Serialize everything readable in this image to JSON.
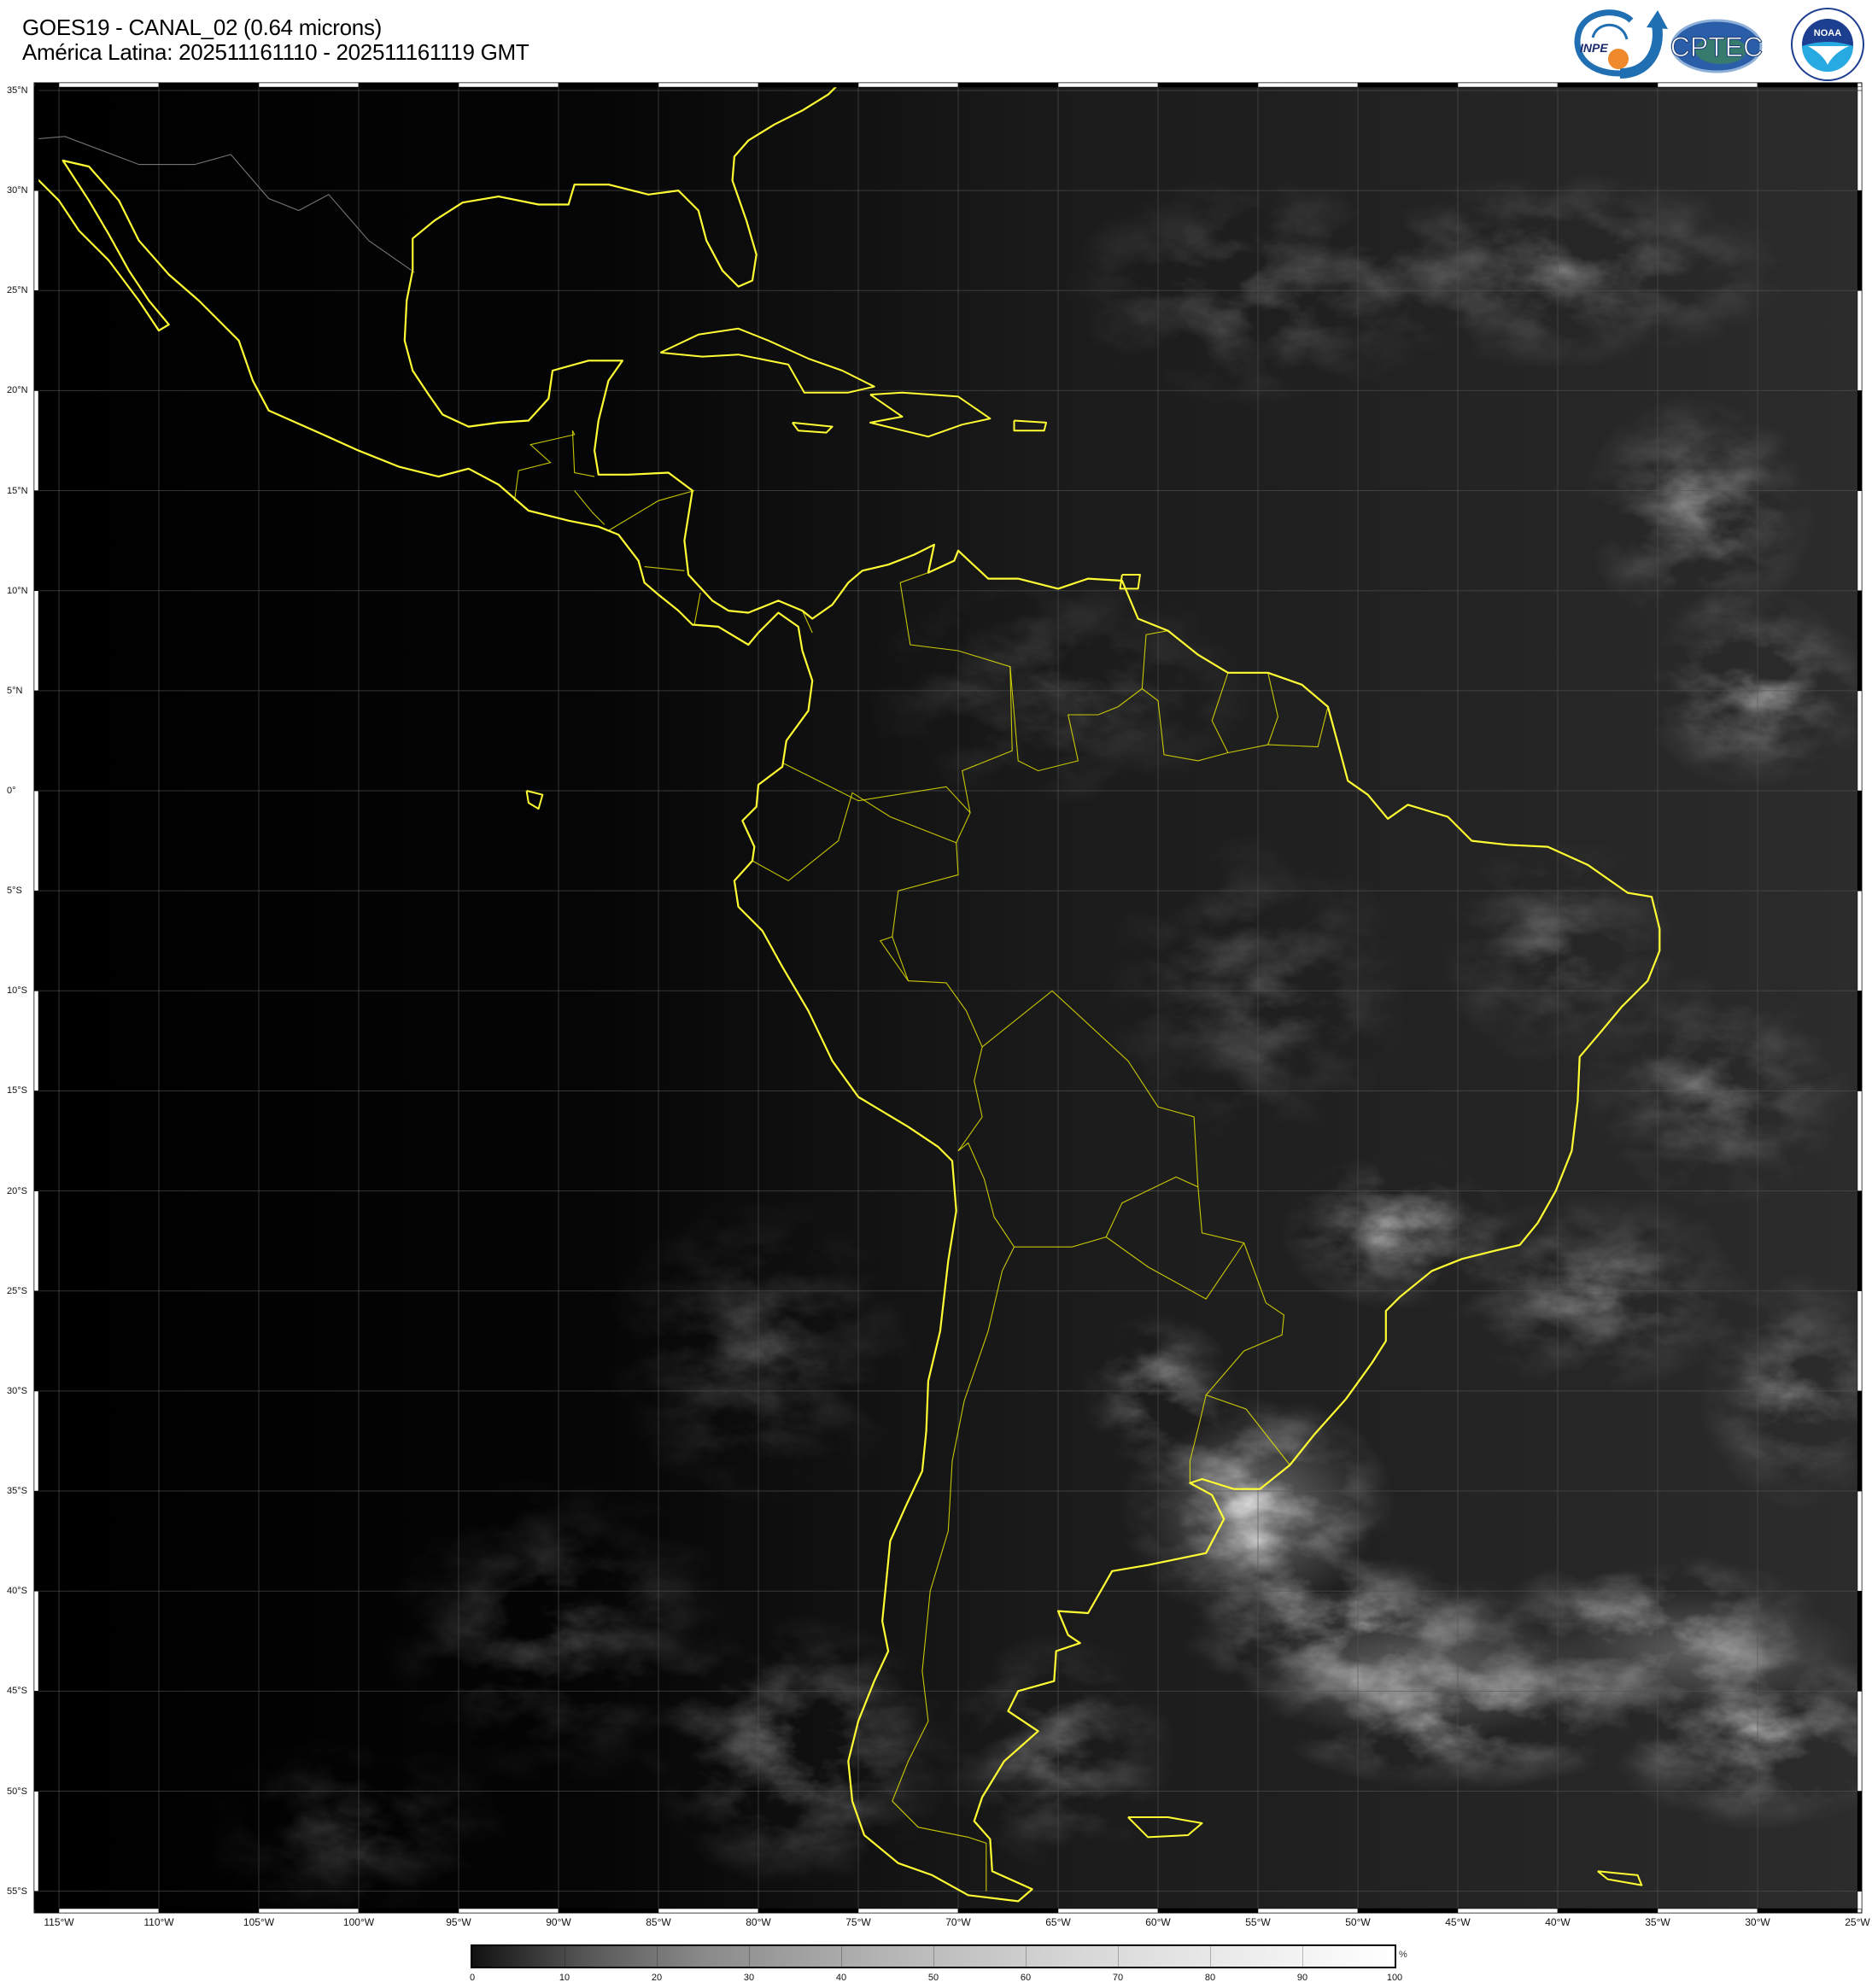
{
  "header": {
    "title": "GOES19 - CANAL_02 (0.64 microns)",
    "subtitle": "América Latina: 202511161110 - 202511161119 GMT"
  },
  "logos": {
    "inpe": "INPE",
    "cptec": "CPTEC",
    "noaa": "NOAA",
    "noaa_ring": "NATIONAL OCEANIC AND ATMOSPHERIC ADMINISTRATION · U.S. DEPARTMENT OF COMMERCE"
  },
  "map": {
    "lat_labels": [
      {
        "lat": 35,
        "text": "35°N"
      },
      {
        "lat": 30,
        "text": "30°N"
      },
      {
        "lat": 25,
        "text": "25°N"
      },
      {
        "lat": 20,
        "text": "20°N"
      },
      {
        "lat": 15,
        "text": "15°N"
      },
      {
        "lat": 10,
        "text": "10°N"
      },
      {
        "lat": 5,
        "text": "5°N"
      },
      {
        "lat": 0,
        "text": "0°"
      },
      {
        "lat": -5,
        "text": "5°S"
      },
      {
        "lat": -10,
        "text": "10°S"
      },
      {
        "lat": -15,
        "text": "15°S"
      },
      {
        "lat": -20,
        "text": "20°S"
      },
      {
        "lat": -25,
        "text": "25°S"
      },
      {
        "lat": -30,
        "text": "30°S"
      },
      {
        "lat": -35,
        "text": "35°S"
      },
      {
        "lat": -40,
        "text": "40°S"
      },
      {
        "lat": -45,
        "text": "45°S"
      },
      {
        "lat": -50,
        "text": "50°S"
      },
      {
        "lat": -55,
        "text": "55°S"
      }
    ],
    "lon_labels": [
      {
        "lon": -115,
        "text": "115°W"
      },
      {
        "lon": -110,
        "text": "110°W"
      },
      {
        "lon": -105,
        "text": "105°W"
      },
      {
        "lon": -100,
        "text": "100°W"
      },
      {
        "lon": -95,
        "text": "95°W"
      },
      {
        "lon": -90,
        "text": "90°W"
      },
      {
        "lon": -85,
        "text": "85°W"
      },
      {
        "lon": -80,
        "text": "80°W"
      },
      {
        "lon": -75,
        "text": "75°W"
      },
      {
        "lon": -70,
        "text": "70°W"
      },
      {
        "lon": -65,
        "text": "65°W"
      },
      {
        "lon": -60,
        "text": "60°W"
      },
      {
        "lon": -55,
        "text": "55°W"
      },
      {
        "lon": -50,
        "text": "50°W"
      },
      {
        "lon": -45,
        "text": "45°W"
      },
      {
        "lon": -40,
        "text": "40°W"
      },
      {
        "lon": -35,
        "text": "35°W"
      },
      {
        "lon": -30,
        "text": "30°W"
      },
      {
        "lon": -25,
        "text": "25°W"
      }
    ],
    "extent": {
      "lon_min": -116.2,
      "lon_max": -25,
      "lat_min": -55.9,
      "lat_max": 35.2
    },
    "coastline_color": "#ffff33",
    "border_color": "#e6e600",
    "grid_color": "#555555"
  },
  "colorbar": {
    "ticks": [
      "0",
      "10",
      "20",
      "30",
      "40",
      "50",
      "60",
      "70",
      "80",
      "90",
      "100"
    ],
    "unit": "%",
    "range": [
      0,
      100
    ]
  }
}
